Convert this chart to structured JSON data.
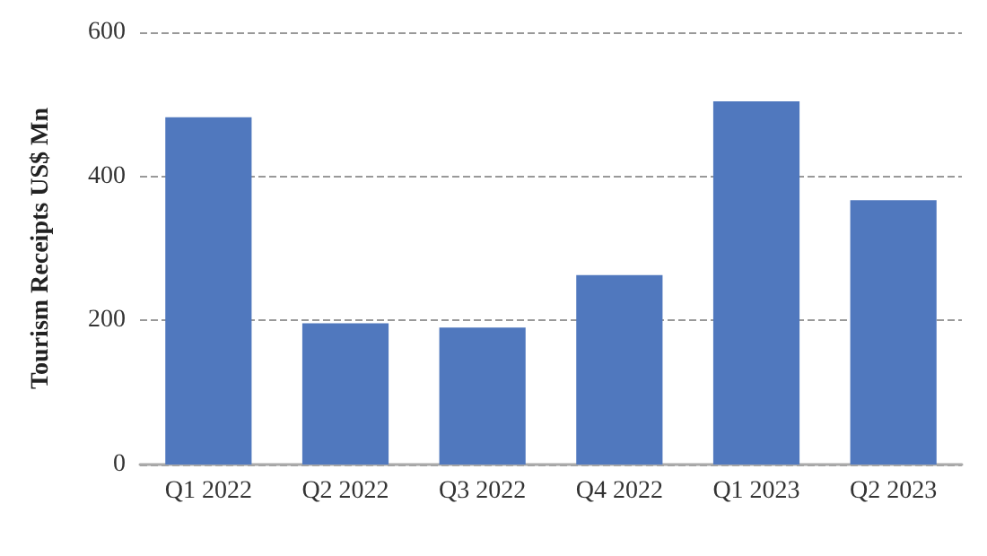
{
  "chart_data": {
    "type": "bar",
    "ylabel": "Tourism Receipts US$ Mn",
    "categories": [
      "Q1 2022",
      "Q2 2022",
      "Q3 2022",
      "Q4 2022",
      "Q1 2023",
      "Q2 2023"
    ],
    "values": [
      482,
      196,
      190,
      263,
      504,
      367
    ],
    "color": "#5078be",
    "ylim": [
      0,
      600
    ],
    "yticks": [
      0,
      200,
      400,
      600
    ],
    "grid": "y"
  }
}
